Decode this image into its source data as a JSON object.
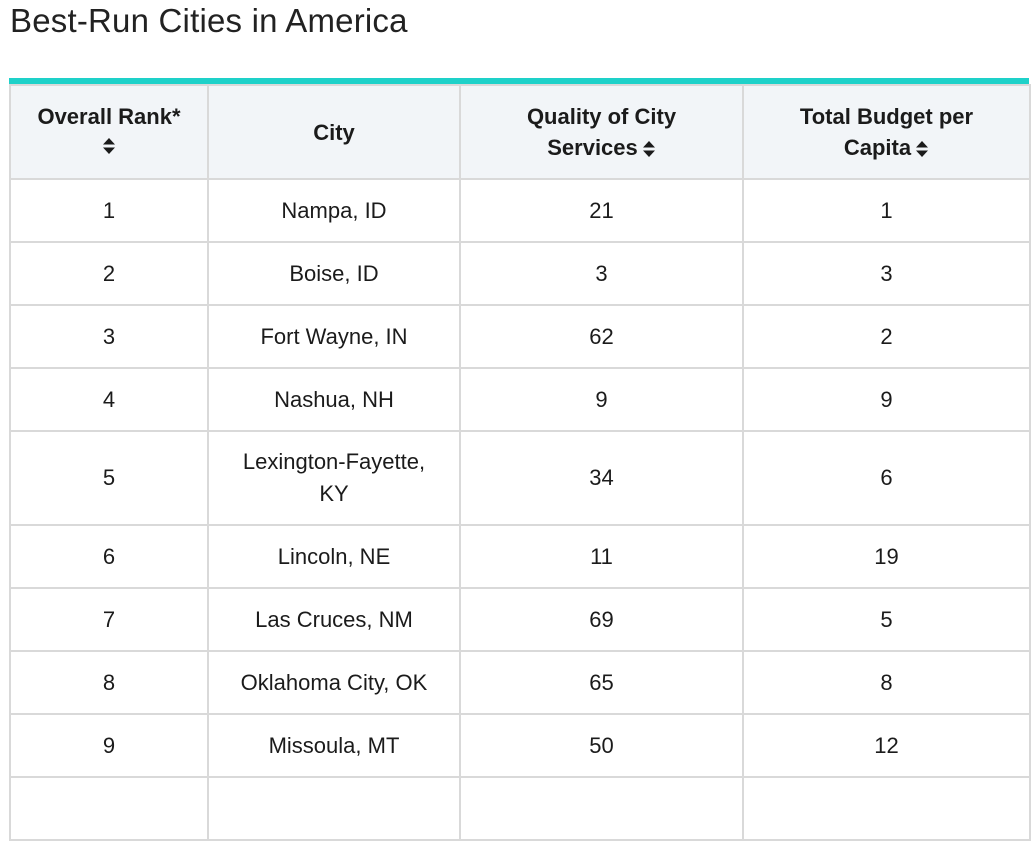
{
  "page": {
    "title": "Best-Run Cities in America"
  },
  "table": {
    "headers": {
      "rank_label": "Overall Rank*",
      "city_label": "City",
      "quality_line1": "Quality of City",
      "quality_line2": "Services",
      "budget_line1": "Total Budget per",
      "budget_line2": "Capita"
    },
    "sort_icon": "sort-updown-icon",
    "rows": [
      {
        "rank": "1",
        "city": "Nampa, ID",
        "quality": "21",
        "budget": "1"
      },
      {
        "rank": "2",
        "city": "Boise, ID",
        "quality": "3",
        "budget": "3"
      },
      {
        "rank": "3",
        "city": "Fort Wayne, IN",
        "quality": "62",
        "budget": "2"
      },
      {
        "rank": "4",
        "city": "Nashua, NH",
        "quality": "9",
        "budget": "9"
      },
      {
        "rank": "5",
        "city": "Lexington-Fayette, KY",
        "quality": "34",
        "budget": "6"
      },
      {
        "rank": "6",
        "city": "Lincoln, NE",
        "quality": "11",
        "budget": "19"
      },
      {
        "rank": "7",
        "city": "Las Cruces, NM",
        "quality": "69",
        "budget": "5"
      },
      {
        "rank": "8",
        "city": "Oklahoma City, OK",
        "quality": "65",
        "budget": "8"
      },
      {
        "rank": "9",
        "city": "Missoula, MT",
        "quality": "50",
        "budget": "12"
      },
      {
        "rank": "",
        "city": "",
        "quality": "",
        "budget": ""
      }
    ]
  },
  "colors": {
    "accent": "#1ed1c9",
    "header_bg": "#f2f5f8",
    "border": "#d9d9d9"
  }
}
